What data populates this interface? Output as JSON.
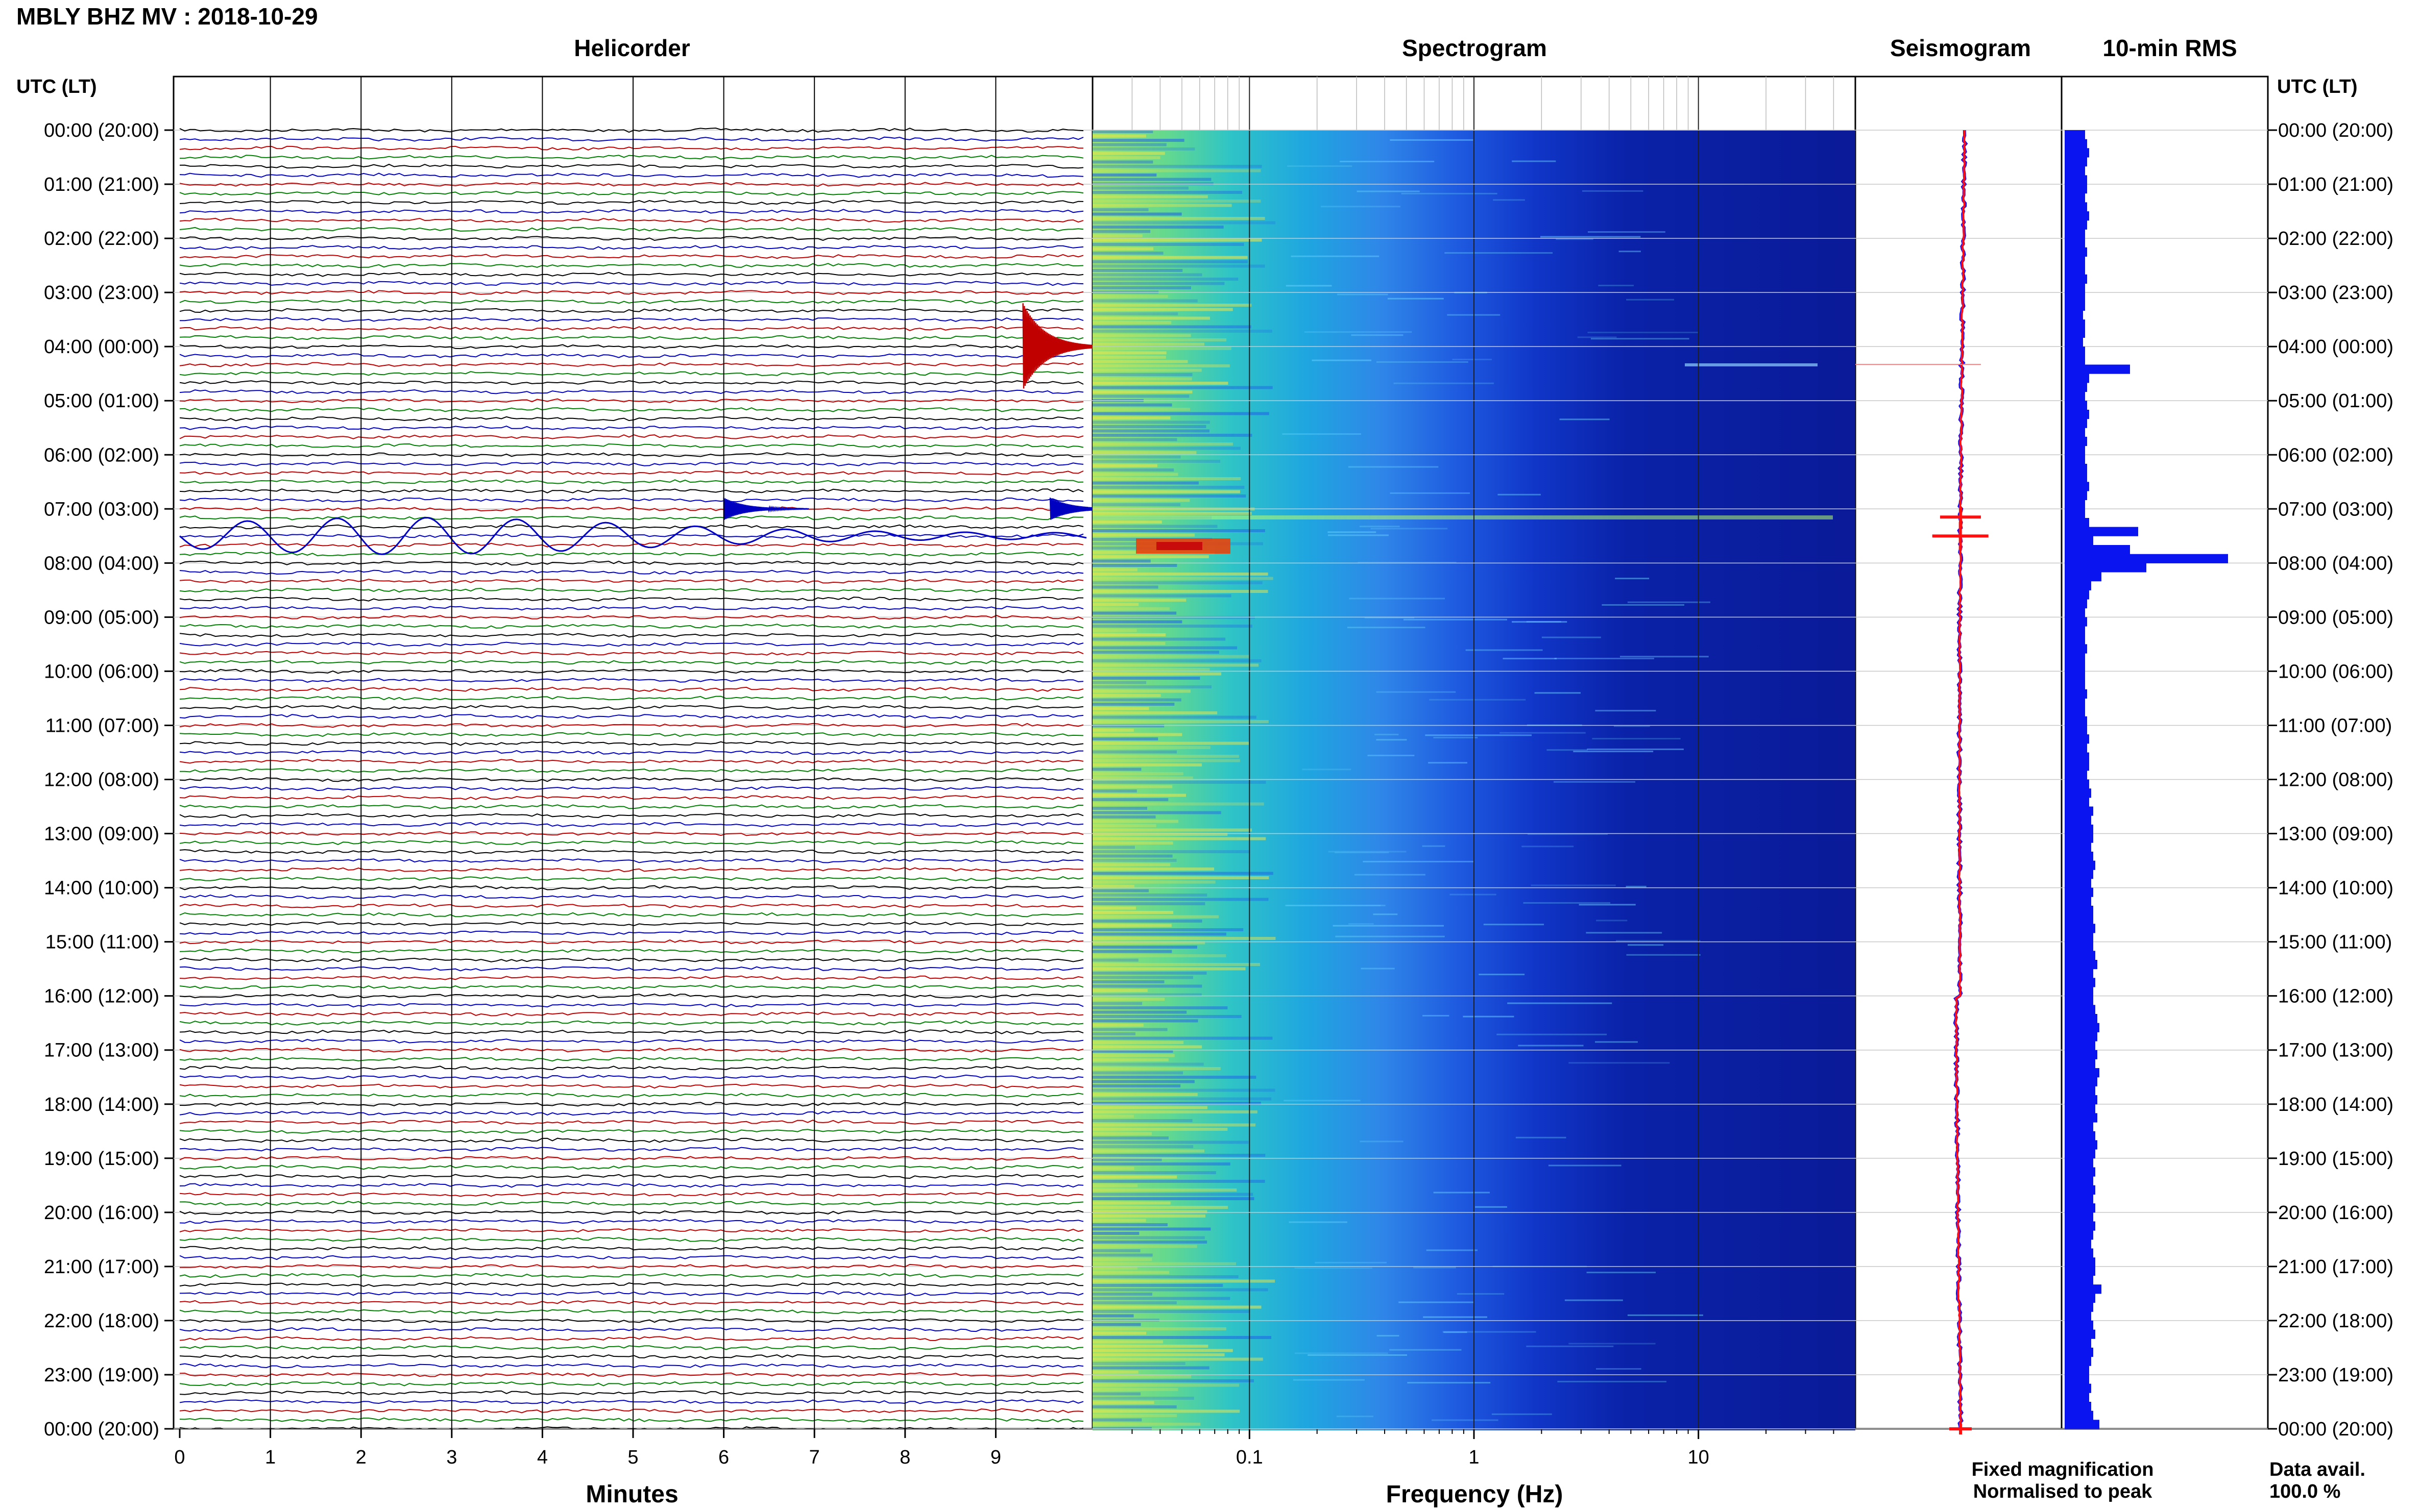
{
  "figure": {
    "title": "MBLY BHZ MV : 2018-10-29",
    "axis_label_left": "UTC (LT)",
    "axis_label_right": "UTC (LT)",
    "panels": {
      "helicorder": "Helicorder",
      "spectrogram": "Spectrogram",
      "seismogram": "Seismogram",
      "rms": "10-min RMS"
    },
    "xlabels": {
      "helicorder": "Minutes",
      "spectrogram": "Frequency (Hz)"
    },
    "time_ticks": [
      "00:00 (20:00)",
      "01:00 (21:00)",
      "02:00 (22:00)",
      "03:00 (23:00)",
      "04:00 (00:00)",
      "05:00 (01:00)",
      "06:00 (02:00)",
      "07:00 (03:00)",
      "08:00 (04:00)",
      "09:00 (05:00)",
      "10:00 (06:00)",
      "11:00 (07:00)",
      "12:00 (08:00)",
      "13:00 (09:00)",
      "14:00 (10:00)",
      "15:00 (11:00)",
      "16:00 (12:00)",
      "17:00 (13:00)",
      "18:00 (14:00)",
      "19:00 (15:00)",
      "20:00 (16:00)",
      "21:00 (17:00)",
      "22:00 (18:00)",
      "23:00 (19:00)",
      "00:00 (20:00)"
    ],
    "minute_ticks": [
      "0",
      "1",
      "2",
      "3",
      "4",
      "5",
      "6",
      "7",
      "8",
      "9"
    ],
    "frequency_ticks": [
      "0.1",
      "1",
      "10"
    ],
    "legend": {
      "fixed": "Fixed magnification",
      "normalised": "Normalised to peak",
      "fixed_color": "#1010ff",
      "normalised_color": "#ff1010"
    },
    "data_avail_label": "Data avail.",
    "data_avail_value": "100.0 %"
  },
  "chart_data": {
    "type": "heatmap",
    "station": "MBLY",
    "channel": "BHZ",
    "network": "MV",
    "date": "2018-10-29",
    "hours_utc": 24,
    "helicorder": {
      "x_unit": "minutes",
      "xlim": [
        0,
        10
      ],
      "lines_per_hour": 6,
      "line_colors": [
        "#000000",
        "#0000c0",
        "#c00000",
        "#008000"
      ],
      "events": [
        {
          "time_utc": "04:00",
          "minute": 9.3,
          "type": "local event",
          "color": "#c00000"
        },
        {
          "time_utc": "07:00",
          "minute": 6.0,
          "type": "event",
          "color": "#0000c0"
        },
        {
          "time_utc": "07:00",
          "minute": 9.6,
          "type": "event",
          "color": "#0000c0"
        },
        {
          "time_utc": "07:30",
          "minute": 0,
          "type": "teleseismic surface waves",
          "color": "#0000c0"
        }
      ]
    },
    "spectrogram": {
      "x_unit": "Hz",
      "x_scale": "log",
      "xlim": [
        0.02,
        50
      ],
      "colormap": "jet",
      "features": [
        {
          "time_utc": "07:20",
          "freq_range": [
            0.04,
            0.1
          ],
          "level": "high"
        },
        {
          "time_utc": "07:00",
          "freq_range": [
            0.1,
            20
          ],
          "level": "broadband"
        },
        {
          "time_utc": "04:15",
          "freq_range": [
            5,
            20
          ],
          "level": "moderate"
        }
      ]
    },
    "seismogram": {
      "series": [
        {
          "name": "Fixed magnification",
          "color": "#1010ff"
        },
        {
          "name": "Normalised to peak",
          "color": "#ff1010"
        }
      ]
    },
    "rms_10min": {
      "unit": "relative",
      "values": [
        0.5,
        0.55,
        0.6,
        0.55,
        0.5,
        0.55,
        0.55,
        0.5,
        0.55,
        0.6,
        0.55,
        0.5,
        0.5,
        0.55,
        0.5,
        0.5,
        0.55,
        0.5,
        0.5,
        0.5,
        0.45,
        0.5,
        0.5,
        0.45,
        0.5,
        0.5,
        1.6,
        0.6,
        0.55,
        0.5,
        0.55,
        0.6,
        0.55,
        0.5,
        0.55,
        0.5,
        0.5,
        0.55,
        0.55,
        0.6,
        0.55,
        0.5,
        0.5,
        0.6,
        1.8,
        0.7,
        1.6,
        4.0,
        2.0,
        0.9,
        0.65,
        0.6,
        0.55,
        0.5,
        0.55,
        0.5,
        0.5,
        0.55,
        0.5,
        0.5,
        0.5,
        0.5,
        0.55,
        0.5,
        0.5,
        0.55,
        0.55,
        0.6,
        0.55,
        0.6,
        0.6,
        0.55,
        0.6,
        0.65,
        0.6,
        0.7,
        0.65,
        0.7,
        0.7,
        0.65,
        0.7,
        0.75,
        0.7,
        0.65,
        0.7,
        0.65,
        0.7,
        0.7,
        0.75,
        0.7,
        0.7,
        0.75,
        0.8,
        0.7,
        0.75,
        0.7,
        0.7,
        0.75,
        0.8,
        0.85,
        0.8,
        0.75,
        0.8,
        0.75,
        0.85,
        0.8,
        0.75,
        0.8,
        0.75,
        0.8,
        0.7,
        0.75,
        0.8,
        0.75,
        0.7,
        0.75,
        0.7,
        0.75,
        0.7,
        0.75,
        0.7,
        0.75,
        0.7,
        0.65,
        0.7,
        0.75,
        0.75,
        0.7,
        0.9,
        0.75,
        0.7,
        0.65,
        0.7,
        0.75,
        0.65,
        0.7,
        0.65,
        0.6,
        0.6,
        0.65,
        0.6,
        0.65,
        0.7,
        0.85
      ]
    },
    "data_availability_percent": 100.0
  }
}
